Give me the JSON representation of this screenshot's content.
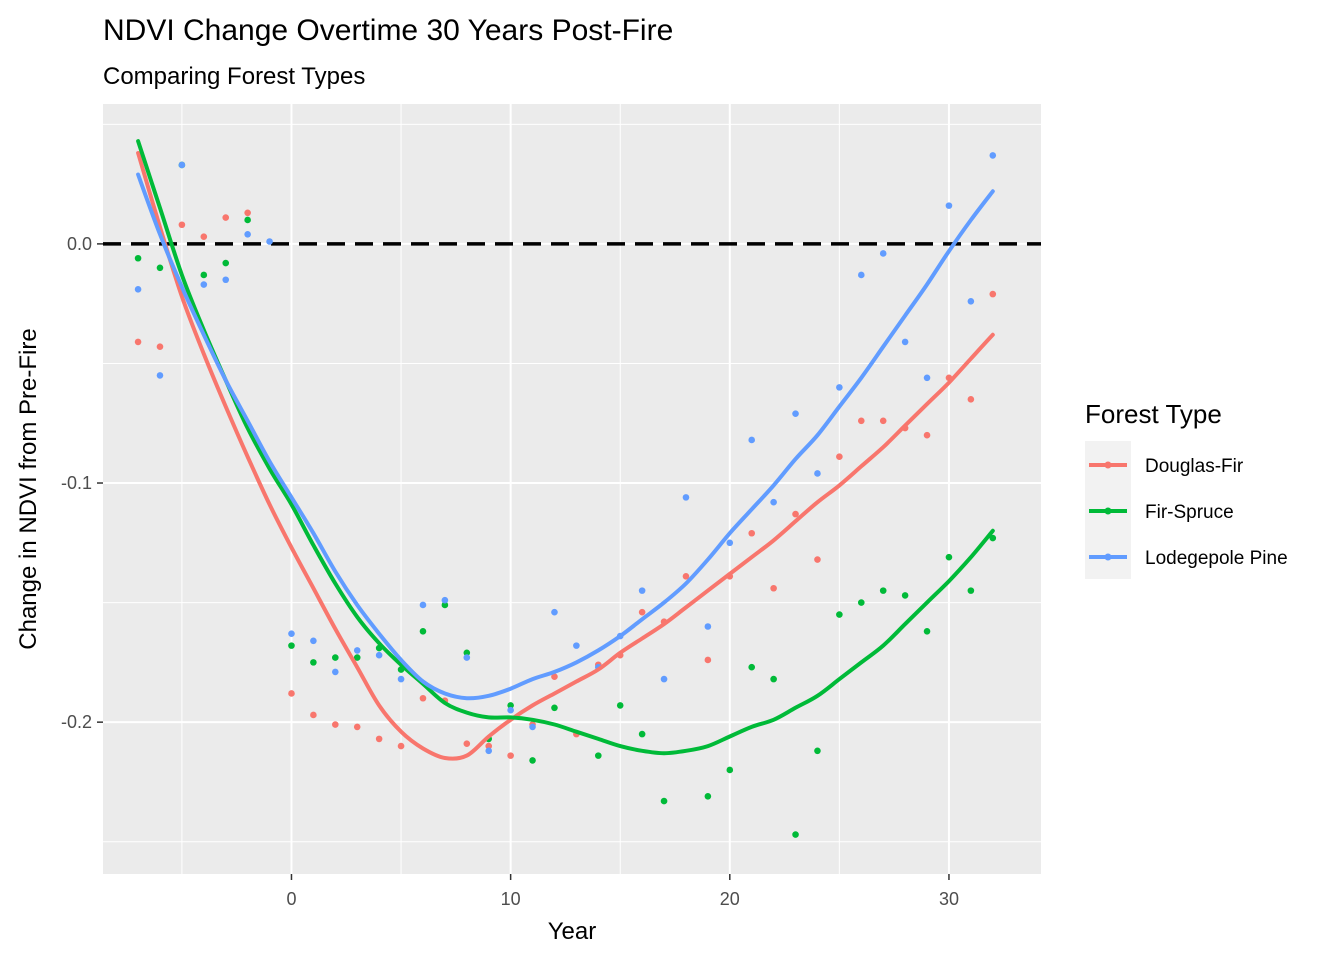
{
  "chart_data": {
    "type": "scatter",
    "title": "NDVI Change Overtime 30 Years Post-Fire",
    "subtitle": "Comparing Forest Types",
    "xlabel": "Year",
    "ylabel": "Change in NDVI from Pre-Fire",
    "xlim": [
      -8.6,
      34.2
    ],
    "ylim": [
      -0.2635,
      0.0585
    ],
    "xticks": [
      0,
      10,
      20,
      30
    ],
    "yticks": [
      0.0,
      -0.1,
      -0.2
    ],
    "xtick_labels": [
      "0",
      "10",
      "20",
      "30"
    ],
    "ytick_labels": [
      "0.0",
      "-0.1",
      "-0.2"
    ],
    "reference_line": {
      "y": 0,
      "style": "dashed",
      "color": "#000000"
    },
    "legend": {
      "title": "Forest Type",
      "position": "right"
    },
    "series": [
      {
        "name": "Douglas-Fir",
        "color": "#F8766D",
        "x": [
          -7,
          -6,
          -5,
          -4,
          -3,
          -2,
          0,
          1,
          2,
          3,
          4,
          5,
          6,
          7,
          8,
          9,
          10,
          11,
          12,
          13,
          14,
          15,
          16,
          17,
          18,
          19,
          20,
          21,
          22,
          23,
          24,
          25,
          26,
          27,
          28,
          29,
          30,
          31,
          32
        ],
        "y": [
          -0.041,
          -0.043,
          0.008,
          0.003,
          0.011,
          0.013,
          -0.188,
          -0.197,
          -0.201,
          -0.202,
          -0.207,
          -0.21,
          -0.19,
          -0.191,
          -0.209,
          -0.21,
          -0.214,
          -0.201,
          -0.181,
          -0.205,
          -0.176,
          -0.172,
          -0.154,
          -0.158,
          -0.139,
          -0.174,
          -0.139,
          -0.121,
          -0.144,
          -0.113,
          -0.132,
          -0.089,
          -0.074,
          -0.074,
          -0.077,
          -0.08,
          -0.056,
          -0.065,
          -0.021
        ],
        "smooth": {
          "x": [
            -7,
            -6,
            -5,
            -4,
            -3,
            -2,
            -1,
            0,
            1,
            2,
            3,
            4,
            5,
            6,
            7,
            8,
            9,
            10,
            11,
            12,
            13,
            14,
            15,
            16,
            17,
            18,
            19,
            20,
            21,
            22,
            23,
            24,
            25,
            26,
            27,
            28,
            29,
            30,
            31,
            32
          ],
          "y": [
            0.038,
            0.007,
            -0.022,
            -0.046,
            -0.068,
            -0.089,
            -0.109,
            -0.127,
            -0.144,
            -0.161,
            -0.177,
            -0.193,
            -0.204,
            -0.211,
            -0.215,
            -0.214,
            -0.206,
            -0.199,
            -0.193,
            -0.188,
            -0.183,
            -0.178,
            -0.171,
            -0.165,
            -0.159,
            -0.152,
            -0.145,
            -0.138,
            -0.131,
            -0.124,
            -0.116,
            -0.108,
            -0.101,
            -0.093,
            -0.085,
            -0.076,
            -0.067,
            -0.058,
            -0.048,
            -0.038
          ]
        }
      },
      {
        "name": "Fir-Spruce",
        "color": "#00BA38",
        "x": [
          -7,
          -6,
          -5,
          -4,
          -3,
          -2,
          0,
          1,
          2,
          3,
          4,
          5,
          6,
          7,
          8,
          9,
          10,
          11,
          12,
          14,
          15,
          16,
          17,
          19,
          20,
          21,
          22,
          23,
          24,
          25,
          26,
          27,
          28,
          29,
          30,
          31,
          32
        ],
        "y": [
          -0.006,
          -0.01,
          0.033,
          -0.013,
          -0.008,
          0.01,
          -0.168,
          -0.175,
          -0.173,
          -0.173,
          -0.169,
          -0.178,
          -0.162,
          -0.151,
          -0.171,
          -0.207,
          -0.193,
          -0.216,
          -0.194,
          -0.214,
          -0.193,
          -0.205,
          -0.233,
          -0.231,
          -0.22,
          -0.177,
          -0.182,
          -0.247,
          -0.212,
          -0.155,
          -0.15,
          -0.145,
          -0.147,
          -0.162,
          -0.131,
          -0.145,
          -0.123
        ],
        "smooth": {
          "x": [
            -7,
            -6,
            -5,
            -4,
            -3,
            -2,
            -1,
            0,
            1,
            2,
            3,
            4,
            5,
            6,
            7,
            8,
            9,
            10,
            11,
            12,
            13,
            14,
            15,
            16,
            17,
            18,
            19,
            20,
            21,
            22,
            23,
            24,
            25,
            26,
            27,
            28,
            29,
            30,
            31,
            32
          ],
          "y": [
            0.043,
            0.015,
            -0.013,
            -0.036,
            -0.057,
            -0.077,
            -0.094,
            -0.109,
            -0.126,
            -0.142,
            -0.156,
            -0.167,
            -0.176,
            -0.184,
            -0.192,
            -0.196,
            -0.198,
            -0.198,
            -0.199,
            -0.201,
            -0.204,
            -0.207,
            -0.21,
            -0.212,
            -0.213,
            -0.212,
            -0.21,
            -0.206,
            -0.202,
            -0.199,
            -0.194,
            -0.189,
            -0.182,
            -0.175,
            -0.168,
            -0.159,
            -0.15,
            -0.141,
            -0.131,
            -0.12
          ]
        }
      },
      {
        "name": "Lodegepole Pine",
        "color": "#619CFF",
        "x": [
          -7,
          -6,
          -5,
          -4,
          -3,
          -2,
          -1,
          0,
          1,
          2,
          3,
          4,
          5,
          6,
          7,
          8,
          9,
          10,
          11,
          12,
          13,
          14,
          15,
          16,
          17,
          18,
          19,
          20,
          21,
          22,
          23,
          24,
          25,
          26,
          27,
          28,
          29,
          30,
          31,
          32
        ],
        "y": [
          -0.019,
          -0.055,
          0.033,
          -0.017,
          -0.015,
          0.004,
          0.001,
          -0.163,
          -0.166,
          -0.179,
          -0.17,
          -0.172,
          -0.182,
          -0.151,
          -0.149,
          -0.173,
          -0.212,
          -0.195,
          -0.202,
          -0.154,
          -0.168,
          -0.177,
          -0.164,
          -0.145,
          -0.182,
          -0.106,
          -0.16,
          -0.125,
          -0.082,
          -0.108,
          -0.071,
          -0.096,
          -0.06,
          -0.013,
          -0.004,
          -0.041,
          -0.056,
          0.016,
          -0.024,
          0.037
        ],
        "smooth": {
          "x": [
            -7,
            -6,
            -5,
            -4,
            -3,
            -2,
            -1,
            0,
            1,
            2,
            3,
            4,
            5,
            6,
            7,
            8,
            9,
            10,
            11,
            12,
            13,
            14,
            15,
            16,
            17,
            18,
            19,
            20,
            21,
            22,
            23,
            24,
            25,
            26,
            27,
            28,
            29,
            30,
            31,
            32
          ],
          "y": [
            0.029,
            0.004,
            -0.018,
            -0.038,
            -0.057,
            -0.074,
            -0.091,
            -0.106,
            -0.121,
            -0.137,
            -0.151,
            -0.163,
            -0.174,
            -0.183,
            -0.188,
            -0.19,
            -0.189,
            -0.186,
            -0.182,
            -0.179,
            -0.175,
            -0.17,
            -0.164,
            -0.157,
            -0.15,
            -0.142,
            -0.132,
            -0.121,
            -0.111,
            -0.101,
            -0.09,
            -0.08,
            -0.068,
            -0.056,
            -0.043,
            -0.03,
            -0.017,
            -0.003,
            0.01,
            0.022
          ]
        }
      }
    ]
  }
}
